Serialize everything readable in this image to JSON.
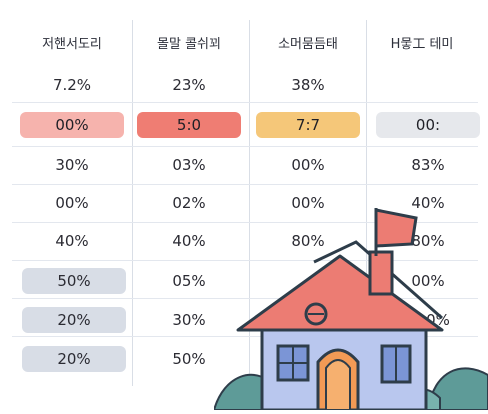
{
  "headers": [
    "저핸서도리",
    "몰말 콜쉬꾀",
    "소머뭄듬태",
    "H뭏工 테미"
  ],
  "rows": [
    [
      "7.2%",
      "23%",
      "38%",
      ""
    ],
    [
      "00%",
      "5:0",
      "7:7",
      "00:"
    ],
    [
      "30%",
      "03%",
      "00%",
      "83%"
    ],
    [
      "00%",
      "02%",
      "00%",
      "40%"
    ],
    [
      "40%",
      "40%",
      "80%",
      "80%"
    ],
    [
      "50%",
      "05%",
      "",
      "00%"
    ],
    [
      "20%",
      "30%",
      "",
      "0%"
    ],
    [
      "20%",
      "50%",
      "",
      ""
    ]
  ],
  "highlights": {
    "pink": "#f6b3ad",
    "red": "#ef7d73",
    "amber": "#f5c779",
    "gray": "#e6e8ec",
    "blue_gray": "#d8dde6"
  },
  "illustration": {
    "subject": "house-with-flag",
    "roof_color": "#ec7c73",
    "wall_color": "#b9c7ee",
    "door_color": "#f29a55",
    "leaf_color": "#5e9b98"
  }
}
